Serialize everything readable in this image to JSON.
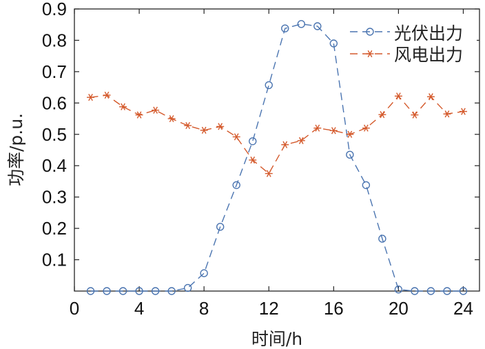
{
  "chart_data": {
    "type": "line",
    "title": "",
    "xlabel": "时间/h",
    "ylabel": "功率/p.u.",
    "xlim": [
      0,
      25
    ],
    "ylim": [
      0,
      0.9
    ],
    "x_ticks": [
      0,
      4,
      8,
      12,
      16,
      20,
      24
    ],
    "x_tick_labels": [
      "0",
      "4",
      "8",
      "12",
      "16",
      "20",
      "24"
    ],
    "y_ticks": [
      0.1,
      0.2,
      0.3,
      0.4,
      0.5,
      0.6,
      0.7,
      0.8,
      0.9
    ],
    "y_tick_labels": [
      "0.1",
      "0.2",
      "0.3",
      "0.4",
      "0.5",
      "0.6",
      "0.7",
      "0.8",
      "0.9"
    ],
    "legend_position": "top-right",
    "grid": false,
    "x": [
      1,
      2,
      3,
      4,
      5,
      6,
      7,
      8,
      9,
      10,
      11,
      12,
      13,
      14,
      15,
      16,
      17,
      18,
      19,
      20,
      21,
      22,
      23,
      24
    ],
    "series": [
      {
        "name": "光伏出力",
        "marker": "circle",
        "color": "#4a74b0",
        "values": [
          0.0,
          0.0,
          0.0,
          0.0,
          0.0,
          0.0,
          0.01,
          0.057,
          0.205,
          0.338,
          0.478,
          0.657,
          0.838,
          0.852,
          0.845,
          0.79,
          0.435,
          0.338,
          0.167,
          0.005,
          0.0,
          0.0,
          0.0,
          0.0
        ]
      },
      {
        "name": "风电出力",
        "marker": "asterisk",
        "color": "#d4592b",
        "values": [
          0.618,
          0.625,
          0.588,
          0.562,
          0.577,
          0.55,
          0.528,
          0.513,
          0.525,
          0.492,
          0.418,
          0.375,
          0.467,
          0.48,
          0.52,
          0.512,
          0.5,
          0.52,
          0.563,
          0.622,
          0.562,
          0.62,
          0.565,
          0.573
        ]
      }
    ]
  }
}
